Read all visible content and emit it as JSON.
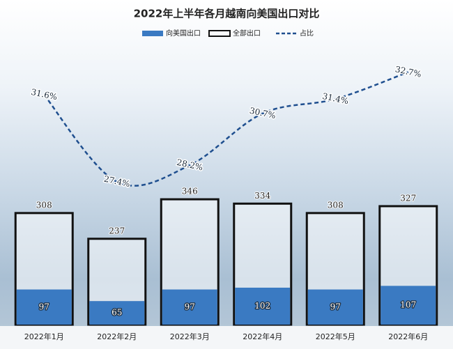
{
  "chart_data": {
    "type": "bar-line",
    "title": "2022年上半年各月越南向美国出口对比",
    "categories": [
      "2022年1月",
      "2022年2月",
      "2022年3月",
      "2022年4月",
      "2022年5月",
      "2022年6月"
    ],
    "series": [
      {
        "name": "向美国出口",
        "color": "#3a7ac2",
        "values": [
          97,
          65,
          97,
          102,
          97,
          107
        ]
      },
      {
        "name": "全部出口",
        "color": "#111111",
        "values": [
          308,
          237,
          346,
          334,
          308,
          327
        ]
      },
      {
        "name": "占比",
        "color": "#1f4f8f",
        "axis": "y2",
        "values": [
          31.6,
          27.4,
          28.2,
          30.7,
          31.4,
          32.7
        ],
        "value_labels": [
          "31.6%",
          "27.4%",
          "28.2%",
          "30.7%",
          "31.4%",
          "32.7%"
        ]
      }
    ],
    "ylim": [
      0,
      800
    ],
    "y2lim": [
      20.5,
      34.5
    ]
  }
}
